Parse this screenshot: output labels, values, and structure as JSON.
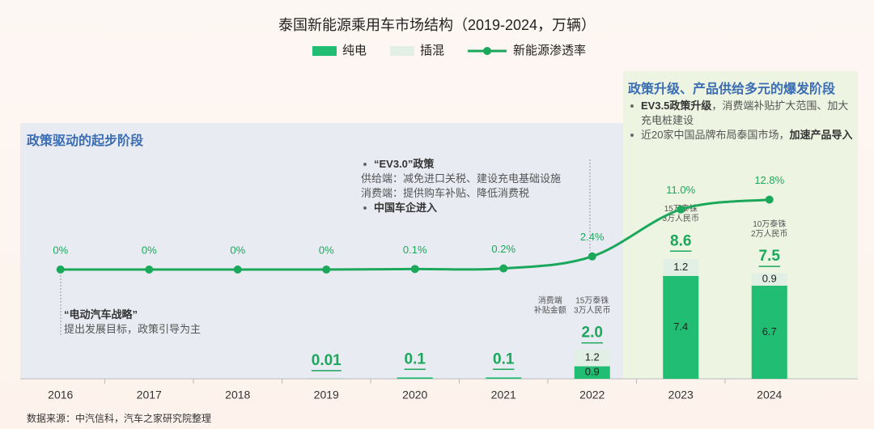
{
  "chart_data": {
    "type": "combo",
    "title": "泰国新能源乘用车市场结构（2019-2024，万辆）",
    "categories": [
      "2016",
      "2017",
      "2018",
      "2019",
      "2020",
      "2021",
      "2022",
      "2023",
      "2024"
    ],
    "series": [
      {
        "name": "纯电",
        "color": "#21bd72",
        "values": [
          null,
          null,
          null,
          0.01,
          0.1,
          0.1,
          0.9,
          7.4,
          6.7
        ]
      },
      {
        "name": "插混",
        "color": "#e1efe4",
        "values": [
          null,
          null,
          null,
          null,
          null,
          null,
          1.2,
          1.2,
          0.9
        ]
      },
      {
        "name": "新能源渗透率",
        "color": "#1ba85b",
        "type": "line",
        "axis": "y2",
        "values": [
          0,
          0,
          0,
          0,
          0.1,
          0.2,
          2.4,
          11.0,
          12.8
        ],
        "value_labels": [
          "0%",
          "0%",
          "0%",
          "0%",
          "0.1%",
          "0.2%",
          "2.4%",
          "11.0%",
          "12.8%"
        ]
      }
    ],
    "totals": [
      null,
      null,
      null,
      0.01,
      0.1,
      0.1,
      2.0,
      8.6,
      7.5
    ],
    "total_labels": [
      null,
      null,
      null,
      "0.01",
      "0.1",
      "0.1",
      "2.0",
      "8.6",
      "7.5"
    ],
    "price_notes": [
      null,
      null,
      null,
      null,
      null,
      null,
      [
        "15万泰铢",
        "3万人民币"
      ],
      [
        "15万泰铢",
        "3万人民币"
      ],
      [
        "10万泰铢",
        "2万人民币"
      ]
    ],
    "price_notes_caption": [
      "消费端",
      "补贴金额"
    ],
    "ylim": [
      0,
      22
    ],
    "y2lim": [
      -20,
      36
    ],
    "stages": [
      {
        "title": "政策驱动的起步阶段"
      },
      {
        "title": "政策升级、产品供给多元的爆发阶段",
        "lines": [
          {
            "bullet": true,
            "runs": [
              {
                "t": "EV3.5政策升级",
                "b": true
              },
              {
                "t": "，消费端补贴扩大范围、加大充电桩建设"
              }
            ]
          },
          {
            "bullet": true,
            "runs": [
              {
                "t": "近20家中国品牌布局泰国市场，"
              },
              {
                "t": "加速产品导入",
                "b": true
              }
            ]
          }
        ]
      }
    ],
    "notes": [
      {
        "lines": [
          {
            "bullet": false,
            "runs": [
              {
                "t": "“电动汽车战略”",
                "b": true
              }
            ]
          },
          {
            "bullet": false,
            "runs": [
              {
                "t": "提出发展目标，政策引导为主"
              }
            ]
          }
        ]
      },
      {
        "lines": [
          {
            "bullet": true,
            "runs": [
              {
                "t": "“EV3.0”政策",
                "b": true
              }
            ]
          },
          {
            "bullet": false,
            "runs": [
              {
                "t": "供给端：减免进口关税、建设充电基础设施"
              }
            ]
          },
          {
            "bullet": false,
            "runs": [
              {
                "t": "消费端：提供购车补贴、降低消费税"
              }
            ]
          },
          {
            "bullet": true,
            "runs": [
              {
                "t": "中国车企进入",
                "b": true
              }
            ]
          }
        ]
      }
    ],
    "source": "数据来源：中汽信科，汽车之家研究院整理"
  }
}
